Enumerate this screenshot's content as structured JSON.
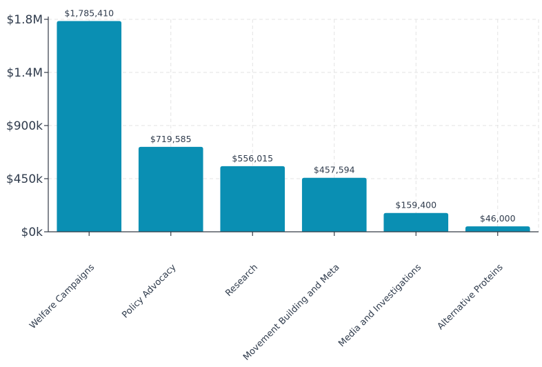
{
  "chart_data": {
    "type": "bar",
    "title": "",
    "xlabel": "",
    "ylabel": "",
    "categories": [
      "Welfare Campaigns",
      "Policy Advocacy",
      "Research",
      "Movement Building and Meta",
      "Media and Investigations",
      "Alternative Proteins"
    ],
    "values": [
      1785410,
      719585,
      556015,
      457594,
      159400,
      46000
    ],
    "data_labels": [
      "$1,785,410",
      "$719,585",
      "$556,015",
      "$457,594",
      "$159,400",
      "$46,000"
    ],
    "ylim": [
      0,
      1800000
    ],
    "yticks": [
      0,
      450000,
      900000,
      1350000,
      1800000
    ],
    "ytick_labels": [
      "$0k",
      "$450k",
      "$900k",
      "$1.4M",
      "$1.8M"
    ],
    "grid": true,
    "legend": "none",
    "bar_color": "#0a8fb3"
  }
}
